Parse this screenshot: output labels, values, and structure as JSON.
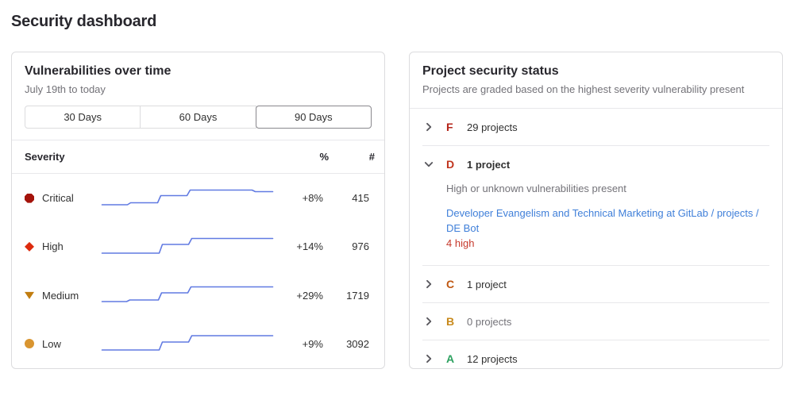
{
  "page": {
    "title": "Security dashboard"
  },
  "vuln_panel": {
    "title": "Vulnerabilities over time",
    "subtitle": "July 19th to today",
    "range_buttons": [
      {
        "label": "30 Days",
        "selected": false
      },
      {
        "label": "60 Days",
        "selected": false
      },
      {
        "label": "90 Days",
        "selected": true
      }
    ],
    "columns": {
      "severity": "Severity",
      "percent": "%",
      "count": "#"
    },
    "chart_data": {
      "type": "line",
      "subtype": "sparkline-step",
      "line_color": "#617ae2",
      "x_range": "July 19th to today (90 Days)",
      "series": [
        {
          "label": "Critical",
          "icon": "severity-critical-icon",
          "icon_color": "#a4130b",
          "percent_change": "+8%",
          "count": "415",
          "trend": [
            [
              1,
              23
            ],
            [
              33,
              23
            ],
            [
              37,
              20.5
            ],
            [
              71,
              20.5
            ],
            [
              75,
              11.5
            ],
            [
              108,
              11.5
            ],
            [
              112,
              4.5
            ],
            [
              190,
              4.5
            ],
            [
              194,
              6.5
            ],
            [
              216,
              6.5
            ]
          ]
        },
        {
          "label": "High",
          "icon": "severity-high-icon",
          "icon_color": "#dd2b0e",
          "percent_change": "+14%",
          "count": "976",
          "trend": [
            [
              1,
              23
            ],
            [
              73,
              23
            ],
            [
              77,
              12
            ],
            [
              110,
              12
            ],
            [
              114,
              4.5
            ],
            [
              216,
              4.5
            ]
          ]
        },
        {
          "label": "Medium",
          "icon": "severity-medium-icon",
          "icon_color": "#c17d10",
          "percent_change": "+29%",
          "count": "1719",
          "trend": [
            [
              1,
              23
            ],
            [
              32,
              23
            ],
            [
              36,
              21
            ],
            [
              72,
              21
            ],
            [
              76,
              12
            ],
            [
              109,
              12
            ],
            [
              113,
              4.5
            ],
            [
              216,
              4.5
            ]
          ]
        },
        {
          "label": "Low",
          "icon": "severity-low-icon",
          "icon_color": "#d99530",
          "percent_change": "+9%",
          "count": "3092",
          "trend": [
            [
              1,
              23
            ],
            [
              73,
              23
            ],
            [
              77,
              13
            ],
            [
              110,
              13
            ],
            [
              114,
              5
            ],
            [
              216,
              5
            ]
          ]
        }
      ]
    }
  },
  "status_panel": {
    "title": "Project security status",
    "subtitle": "Projects are graded based on the highest severity vulnerability present",
    "grades": [
      {
        "letter": "F",
        "color": "#b42318",
        "count_label": "29 projects",
        "expanded": false
      },
      {
        "letter": "D",
        "color": "#c0341d",
        "count_label": "1 project",
        "expanded": true,
        "description": "High or unknown vulnerabilities present",
        "project_link": "Developer Evangelism and Technical Marketing at GitLab / projects / DE Bot",
        "finding": "4 high",
        "finding_color": "#c6392c",
        "link_color": "#3f7fd9"
      },
      {
        "letter": "C",
        "color": "#bf5711",
        "count_label": "1 project",
        "expanded": false
      },
      {
        "letter": "B",
        "color": "#c88a1c",
        "count_label": "0 projects",
        "expanded": false,
        "muted": true
      },
      {
        "letter": "A",
        "color": "#2da160",
        "count_label": "12 projects",
        "expanded": false
      }
    ]
  }
}
